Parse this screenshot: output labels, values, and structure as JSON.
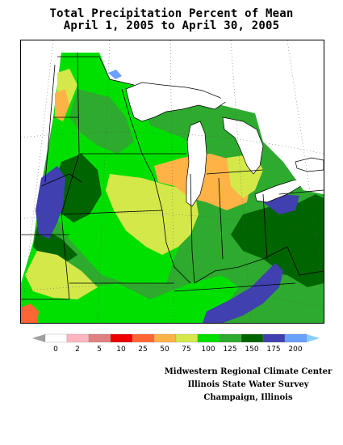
{
  "title": {
    "line1": "Total Precipitation Percent of Mean",
    "line2": "April 1, 2005 to April 30, 2005"
  },
  "legend": {
    "bins": [
      {
        "label": "0",
        "color": "#ffffff"
      },
      {
        "label": "2",
        "color": "#ffb6c1"
      },
      {
        "label": "5",
        "color": "#e08080"
      },
      {
        "label": "10",
        "color": "#ee0000"
      },
      {
        "label": "25",
        "color": "#ff6633"
      },
      {
        "label": "50",
        "color": "#ffb347"
      },
      {
        "label": "75",
        "color": "#d4e84a"
      },
      {
        "label": "100",
        "color": "#00e000"
      },
      {
        "label": "125",
        "color": "#2eaa2e"
      },
      {
        "label": "150",
        "color": "#006400"
      },
      {
        "label": "175",
        "color": "#4040b0"
      },
      {
        "label": "200",
        "color": "#6aa0ff"
      }
    ],
    "left_cap_color": "#a0a0a0",
    "right_cap_color": "#87cefa"
  },
  "credits": {
    "line1": "Midwestern Regional Climate Center",
    "line2": "Illinois State Water Survey",
    "line3": "Champaign, Illinois"
  },
  "map": {
    "colors": {
      "green": "#00e000",
      "dark_green": "#006400",
      "medium_green": "#2eaa2e",
      "yellow_green": "#d4e84a",
      "orange": "#ffb347",
      "red_orange": "#ff6633",
      "blue": "#4040b0",
      "light_blue": "#6aa0ff",
      "water": "#ffffff",
      "boundary": "#000000"
    }
  }
}
